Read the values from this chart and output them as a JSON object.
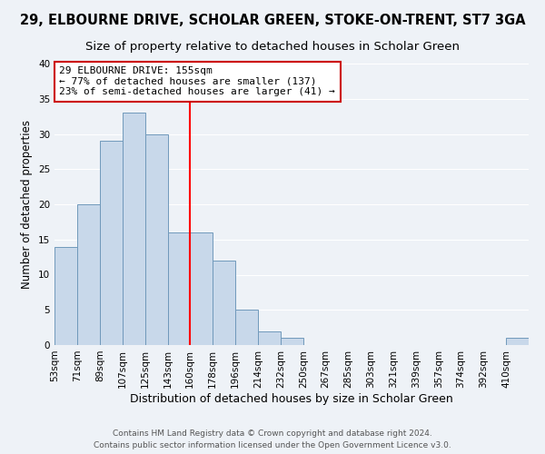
{
  "title": "29, ELBOURNE DRIVE, SCHOLAR GREEN, STOKE-ON-TRENT, ST7 3GA",
  "subtitle": "Size of property relative to detached houses in Scholar Green",
  "xlabel": "Distribution of detached houses by size in Scholar Green",
  "ylabel": "Number of detached properties",
  "bar_values": [
    14,
    20,
    29,
    33,
    30,
    16,
    16,
    12,
    5,
    2,
    1,
    0,
    0,
    0,
    0,
    0,
    0,
    0,
    0,
    0,
    1
  ],
  "bar_edges": [
    53,
    71,
    89,
    107,
    125,
    143,
    160,
    178,
    196,
    214,
    232,
    250,
    267,
    285,
    303,
    321,
    339,
    357,
    374,
    392,
    410
  ],
  "x_tick_labels": [
    "53sqm",
    "71sqm",
    "89sqm",
    "107sqm",
    "125sqm",
    "143sqm",
    "160sqm",
    "178sqm",
    "196sqm",
    "214sqm",
    "232sqm",
    "250sqm",
    "267sqm",
    "285sqm",
    "303sqm",
    "321sqm",
    "339sqm",
    "357sqm",
    "374sqm",
    "392sqm",
    "410sqm"
  ],
  "bar_color": "#c8d8ea",
  "bar_edge_color": "#7099bb",
  "red_line_x": 160,
  "ylim": [
    0,
    40
  ],
  "annotation_title": "29 ELBOURNE DRIVE: 155sqm",
  "annotation_line1": "← 77% of detached houses are smaller (137)",
  "annotation_line2": "23% of semi-detached houses are larger (41) →",
  "annotation_box_color": "#ffffff",
  "annotation_box_edge_color": "#cc0000",
  "footer_line1": "Contains HM Land Registry data © Crown copyright and database right 2024.",
  "footer_line2": "Contains public sector information licensed under the Open Government Licence v3.0.",
  "background_color": "#eef2f7",
  "grid_color": "#ffffff",
  "title_fontsize": 10.5,
  "subtitle_fontsize": 9.5,
  "xlabel_fontsize": 9,
  "ylabel_fontsize": 8.5,
  "tick_fontsize": 7.5,
  "annotation_fontsize": 8,
  "footer_fontsize": 6.5
}
